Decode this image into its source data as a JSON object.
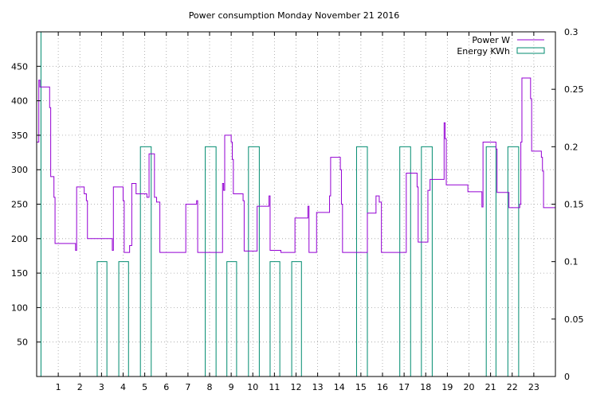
{
  "chart_data": {
    "title": "Power consumption Monday November 21 2016",
    "xlim": [
      0,
      24
    ],
    "x_ticks": [
      1,
      2,
      3,
      4,
      5,
      6,
      7,
      8,
      9,
      10,
      11,
      12,
      13,
      14,
      15,
      16,
      17,
      18,
      19,
      20,
      21,
      22,
      23
    ],
    "y_left": {
      "lim": [
        0,
        500
      ],
      "ticks": [
        50,
        100,
        150,
        200,
        250,
        300,
        350,
        400,
        450
      ]
    },
    "y_right": {
      "lim": [
        0,
        0.3
      ],
      "ticks": [
        "0",
        "0.05",
        "0.1",
        "0.15",
        "0.2",
        "0.25",
        "0.3"
      ]
    },
    "grid": true,
    "legend_position": "top-right",
    "series": [
      {
        "name": "Power W",
        "type": "step-line",
        "axis": "left",
        "color": "#9400d3",
        "points": [
          [
            0.0,
            340
          ],
          [
            0.1,
            340
          ],
          [
            0.1,
            430
          ],
          [
            0.15,
            430
          ],
          [
            0.15,
            420
          ],
          [
            0.6,
            420
          ],
          [
            0.6,
            390
          ],
          [
            0.65,
            390
          ],
          [
            0.65,
            290
          ],
          [
            0.8,
            290
          ],
          [
            0.8,
            260
          ],
          [
            0.85,
            260
          ],
          [
            0.85,
            193
          ],
          [
            1.8,
            193
          ],
          [
            1.8,
            183
          ],
          [
            1.85,
            183
          ],
          [
            1.85,
            275
          ],
          [
            2.2,
            275
          ],
          [
            2.2,
            265
          ],
          [
            2.3,
            265
          ],
          [
            2.3,
            255
          ],
          [
            2.35,
            255
          ],
          [
            2.35,
            200
          ],
          [
            3.5,
            200
          ],
          [
            3.5,
            183
          ],
          [
            3.55,
            183
          ],
          [
            3.55,
            275
          ],
          [
            4.0,
            275
          ],
          [
            4.0,
            255
          ],
          [
            4.05,
            255
          ],
          [
            4.05,
            180
          ],
          [
            4.3,
            180
          ],
          [
            4.3,
            190
          ],
          [
            4.4,
            190
          ],
          [
            4.4,
            280
          ],
          [
            4.6,
            280
          ],
          [
            4.6,
            265
          ],
          [
            5.1,
            265
          ],
          [
            5.1,
            260
          ],
          [
            5.2,
            260
          ],
          [
            5.2,
            323
          ],
          [
            5.45,
            323
          ],
          [
            5.45,
            260
          ],
          [
            5.55,
            260
          ],
          [
            5.55,
            253
          ],
          [
            5.7,
            253
          ],
          [
            5.7,
            180
          ],
          [
            6.9,
            180
          ],
          [
            6.9,
            250
          ],
          [
            7.4,
            250
          ],
          [
            7.4,
            255
          ],
          [
            7.45,
            255
          ],
          [
            7.45,
            180
          ],
          [
            8.6,
            180
          ],
          [
            8.6,
            280
          ],
          [
            8.65,
            280
          ],
          [
            8.65,
            270
          ],
          [
            8.7,
            270
          ],
          [
            8.7,
            350
          ],
          [
            9.0,
            350
          ],
          [
            9.0,
            340
          ],
          [
            9.05,
            340
          ],
          [
            9.05,
            315
          ],
          [
            9.1,
            315
          ],
          [
            9.1,
            265
          ],
          [
            9.55,
            265
          ],
          [
            9.55,
            255
          ],
          [
            9.6,
            255
          ],
          [
            9.6,
            182
          ],
          [
            10.2,
            182
          ],
          [
            10.2,
            247
          ],
          [
            10.75,
            247
          ],
          [
            10.75,
            262
          ],
          [
            10.8,
            262
          ],
          [
            10.8,
            183
          ],
          [
            11.3,
            183
          ],
          [
            11.3,
            180
          ],
          [
            11.95,
            180
          ],
          [
            11.95,
            230
          ],
          [
            12.55,
            230
          ],
          [
            12.55,
            247
          ],
          [
            12.6,
            247
          ],
          [
            12.6,
            180
          ],
          [
            12.95,
            180
          ],
          [
            12.95,
            238
          ],
          [
            13.55,
            238
          ],
          [
            13.55,
            262
          ],
          [
            13.6,
            262
          ],
          [
            13.6,
            318
          ],
          [
            14.05,
            318
          ],
          [
            14.05,
            300
          ],
          [
            14.1,
            300
          ],
          [
            14.1,
            250
          ],
          [
            14.15,
            250
          ],
          [
            14.15,
            180
          ],
          [
            15.3,
            180
          ],
          [
            15.3,
            237
          ],
          [
            15.7,
            237
          ],
          [
            15.7,
            262
          ],
          [
            15.85,
            262
          ],
          [
            15.85,
            253
          ],
          [
            15.95,
            253
          ],
          [
            15.95,
            180
          ],
          [
            17.1,
            180
          ],
          [
            17.1,
            295
          ],
          [
            17.6,
            295
          ],
          [
            17.6,
            275
          ],
          [
            17.65,
            275
          ],
          [
            17.65,
            195
          ],
          [
            18.1,
            195
          ],
          [
            18.1,
            270
          ],
          [
            18.2,
            270
          ],
          [
            18.2,
            286
          ],
          [
            18.85,
            286
          ],
          [
            18.85,
            368
          ],
          [
            18.9,
            368
          ],
          [
            18.9,
            345
          ],
          [
            18.95,
            345
          ],
          [
            18.95,
            278
          ],
          [
            19.95,
            278
          ],
          [
            19.95,
            268
          ],
          [
            20.6,
            268
          ],
          [
            20.6,
            246
          ],
          [
            20.65,
            246
          ],
          [
            20.65,
            340
          ],
          [
            21.25,
            340
          ],
          [
            21.25,
            330
          ],
          [
            21.3,
            330
          ],
          [
            21.3,
            267
          ],
          [
            21.85,
            267
          ],
          [
            21.85,
            245
          ],
          [
            22.35,
            245
          ],
          [
            22.35,
            250
          ],
          [
            22.4,
            250
          ],
          [
            22.4,
            340
          ],
          [
            22.45,
            340
          ],
          [
            22.45,
            433
          ],
          [
            22.85,
            433
          ],
          [
            22.85,
            403
          ],
          [
            22.9,
            403
          ],
          [
            22.9,
            327
          ],
          [
            23.35,
            327
          ],
          [
            23.35,
            318
          ],
          [
            23.4,
            318
          ],
          [
            23.4,
            298
          ],
          [
            23.45,
            298
          ],
          [
            23.45,
            245
          ],
          [
            24.0,
            245
          ]
        ]
      },
      {
        "name": "Energy KWh",
        "type": "boxes",
        "axis": "right",
        "color": "#008b6f",
        "boxes": [
          [
            0.0,
            0.2,
            0.3
          ],
          [
            2.8,
            3.25,
            0.1
          ],
          [
            3.8,
            4.25,
            0.1
          ],
          [
            4.8,
            5.3,
            0.2
          ],
          [
            7.8,
            8.3,
            0.2
          ],
          [
            8.8,
            9.25,
            0.1
          ],
          [
            9.8,
            10.3,
            0.2
          ],
          [
            10.8,
            11.25,
            0.1
          ],
          [
            11.8,
            12.25,
            0.1
          ],
          [
            14.8,
            15.3,
            0.2
          ],
          [
            16.8,
            17.3,
            0.2
          ],
          [
            17.8,
            18.3,
            0.2
          ],
          [
            20.8,
            21.25,
            0.2
          ],
          [
            21.8,
            22.3,
            0.2
          ]
        ]
      }
    ]
  }
}
